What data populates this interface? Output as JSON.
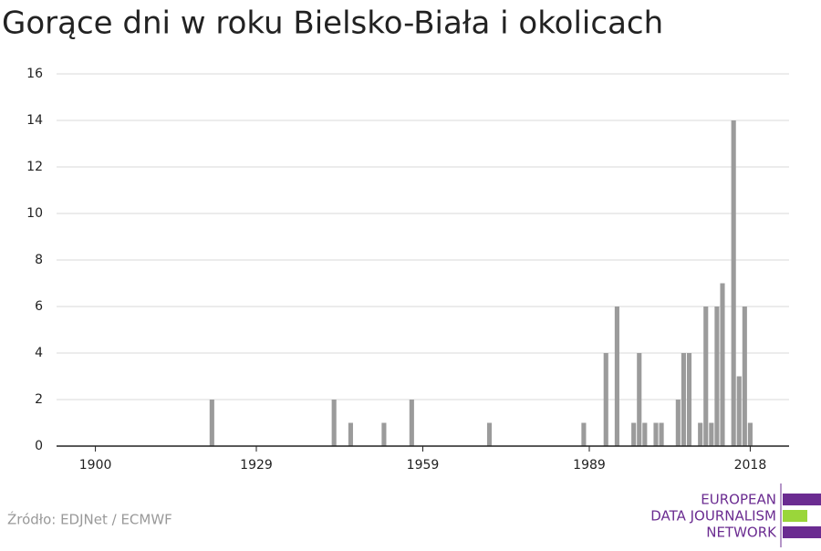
{
  "chart_data": {
    "type": "bar",
    "title": "Gorące dni w roku Bielsko-Biała i okolicach",
    "source": "Źródło: EDJNet / ECMWF",
    "logo": [
      "EUROPEAN",
      "DATA JOURNALISM",
      "NETWORK"
    ],
    "x": [
      1921,
      1943,
      1946,
      1952,
      1957,
      1971,
      1988,
      1992,
      1994,
      1997,
      1998,
      1999,
      2001,
      2002,
      2005,
      2006,
      2007,
      2009,
      2010,
      2011,
      2012,
      2013,
      2015,
      2016,
      2017,
      2018
    ],
    "values": [
      2,
      2,
      1,
      1,
      2,
      1,
      1,
      4,
      6,
      1,
      4,
      1,
      1,
      1,
      2,
      4,
      4,
      1,
      6,
      1,
      6,
      7,
      14,
      3,
      6,
      1
    ],
    "color": "#9b9b9b",
    "xlim": [
      1893,
      2025
    ],
    "xticks": [
      1900,
      1929,
      1959,
      1989,
      2018
    ],
    "ylim": [
      0,
      16
    ],
    "yticks": [
      0,
      2,
      4,
      6,
      8,
      10,
      12,
      14,
      16
    ],
    "grid": true
  }
}
